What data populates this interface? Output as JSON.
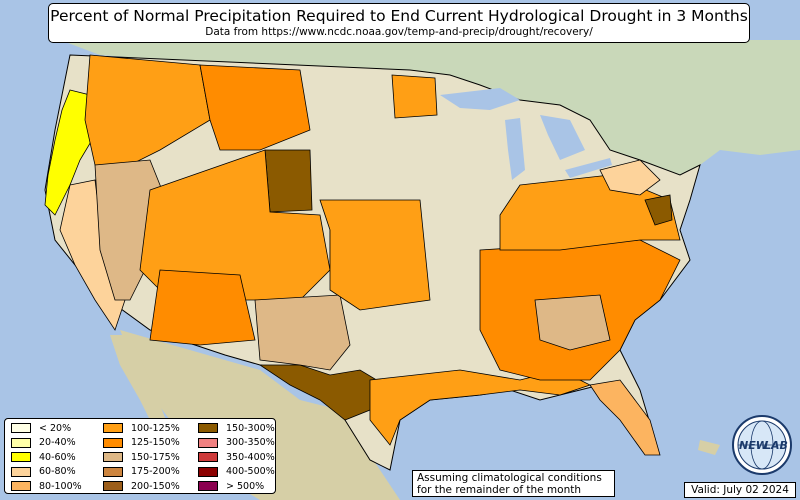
{
  "title": {
    "main": "Percent of Normal Precipitation Required to End Current Hydrological Drought in 3 Months",
    "sub": "Data from https://www.ncdc.noaa.gov/temp-and-precip/drought/recovery/"
  },
  "legend": {
    "items": [
      {
        "label": "< 20%",
        "color": "#ffffe6"
      },
      {
        "label": "20-40%",
        "color": "#ffffa8"
      },
      {
        "label": "40-60%",
        "color": "#ffff00"
      },
      {
        "label": "60-80%",
        "color": "#fdd39b"
      },
      {
        "label": "80-100%",
        "color": "#fcb460"
      },
      {
        "label": "100-125%",
        "color": "#ff9f15"
      },
      {
        "label": "125-150%",
        "color": "#ff8c00"
      },
      {
        "label": "150-175%",
        "color": "#deb887"
      },
      {
        "label": "175-200%",
        "color": "#cd853f"
      },
      {
        "label": "200-150%",
        "color": "#9c5e1a"
      },
      {
        "label": "150-300%",
        "color": "#8b5a00"
      },
      {
        "label": "300-350%",
        "color": "#f08080"
      },
      {
        "label": "350-400%",
        "color": "#cd3a3a"
      },
      {
        "label": "400-500%",
        "color": "#8b0000"
      },
      {
        "label": "> 500%",
        "color": "#8b0050"
      }
    ]
  },
  "note": {
    "line1": "Assuming climatological conditions",
    "line2": "for the remainder of the month"
  },
  "valid": "Valid: July 02 2024",
  "logo": {
    "text_left": "NEW",
    "text_right": "LAB",
    "icon": "globe-logo-icon"
  },
  "colors": {
    "water": "#a9c4e6",
    "land": "#e7e1c8",
    "canada": "#c9d8b9",
    "mexico": "#d6cfa6",
    "border": "#000000"
  }
}
